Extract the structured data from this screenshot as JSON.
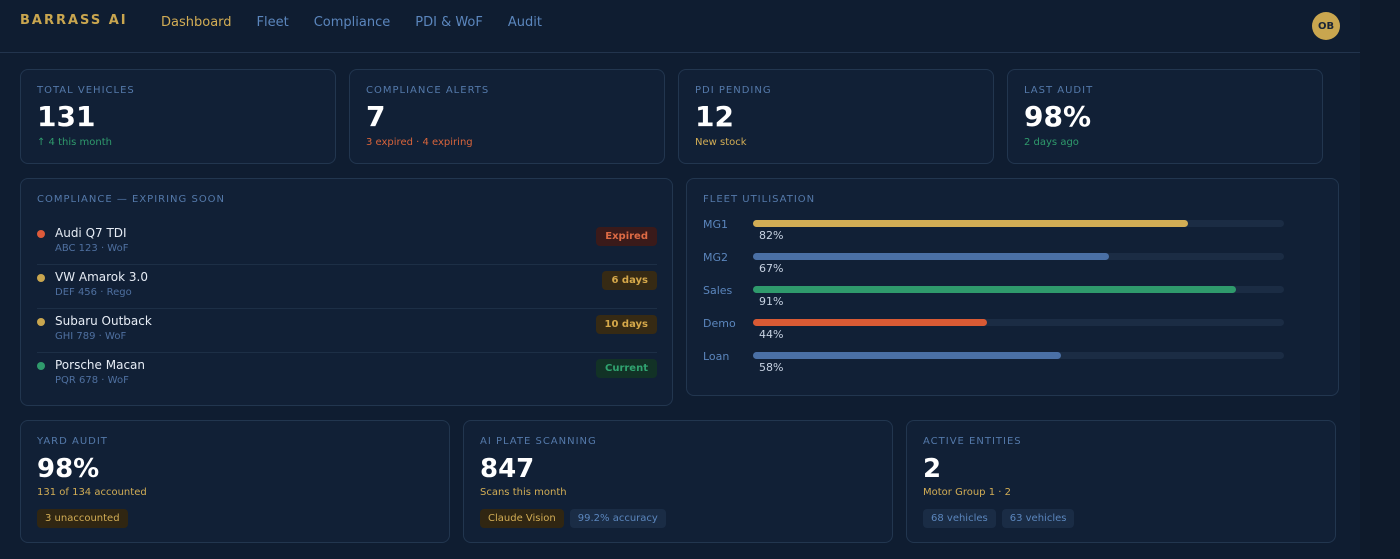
{
  "header": {
    "brand": "BARRASS AI",
    "nav": [
      "Dashboard",
      "Fleet",
      "Compliance",
      "PDI & WoF",
      "Audit"
    ],
    "active_nav": "Dashboard",
    "avatar_initials": "OB"
  },
  "stats": [
    {
      "label": "TOTAL VEHICLES",
      "value": "131",
      "sub": "↑ 4 this month"
    },
    {
      "label": "COMPLIANCE ALERTS",
      "value": "7",
      "sub": "3 expired · 4 expiring"
    },
    {
      "label": "PDI PENDING",
      "value": "12",
      "sub": "New stock"
    },
    {
      "label": "LAST AUDIT",
      "value": "98%",
      "sub": "2 days ago"
    }
  ],
  "compliance": {
    "title": "COMPLIANCE — EXPIRING SOON",
    "items": [
      {
        "name": "Audi Q7 TDI",
        "sub": "ABC 123 · WoF",
        "badge": "Expired",
        "status_color": "#dd5a3a"
      },
      {
        "name": "VW Amarok 3.0",
        "sub": "DEF 456 · Rego",
        "badge": "6 days",
        "status_color": "#c9a64f"
      },
      {
        "name": "Subaru Outback",
        "sub": "GHI 789 · WoF",
        "badge": "10 days",
        "status_color": "#c9a64f"
      },
      {
        "name": "Porsche Macan",
        "sub": "PQR 678 · WoF",
        "badge": "Current",
        "status_color": "#2f9a6c"
      }
    ]
  },
  "fleet": {
    "title": "FLEET UTILISATION",
    "items": [
      {
        "name": "MG1",
        "pct_label": "82%",
        "value": 0.82,
        "color": "#d2ad55"
      },
      {
        "name": "MG2",
        "pct_label": "67%",
        "value": 0.67,
        "color": "#4a70a6"
      },
      {
        "name": "Sales",
        "pct_label": "91%",
        "value": 0.91,
        "color": "#2f9a6c"
      },
      {
        "name": "Demo",
        "pct_label": "44%",
        "value": 0.44,
        "color": "#d95a34"
      },
      {
        "name": "Loan",
        "pct_label": "58%",
        "value": 0.58,
        "color": "#4a70a6"
      }
    ]
  },
  "yard_audit": {
    "label": "YARD AUDIT",
    "value": "98%",
    "sub": "131 of 134 accounted",
    "chips": [
      "3 unaccounted"
    ]
  },
  "plate_scanning": {
    "label": "AI PLATE SCANNING",
    "value": "847",
    "sub": "Scans this month",
    "chips": [
      "Claude Vision",
      "99.2% accuracy"
    ]
  },
  "entities": {
    "label": "ACTIVE ENTITIES",
    "value": "2",
    "sub": "Motor Group 1 · 2",
    "chips": [
      "68 vehicles",
      "63 vehicles"
    ]
  }
}
